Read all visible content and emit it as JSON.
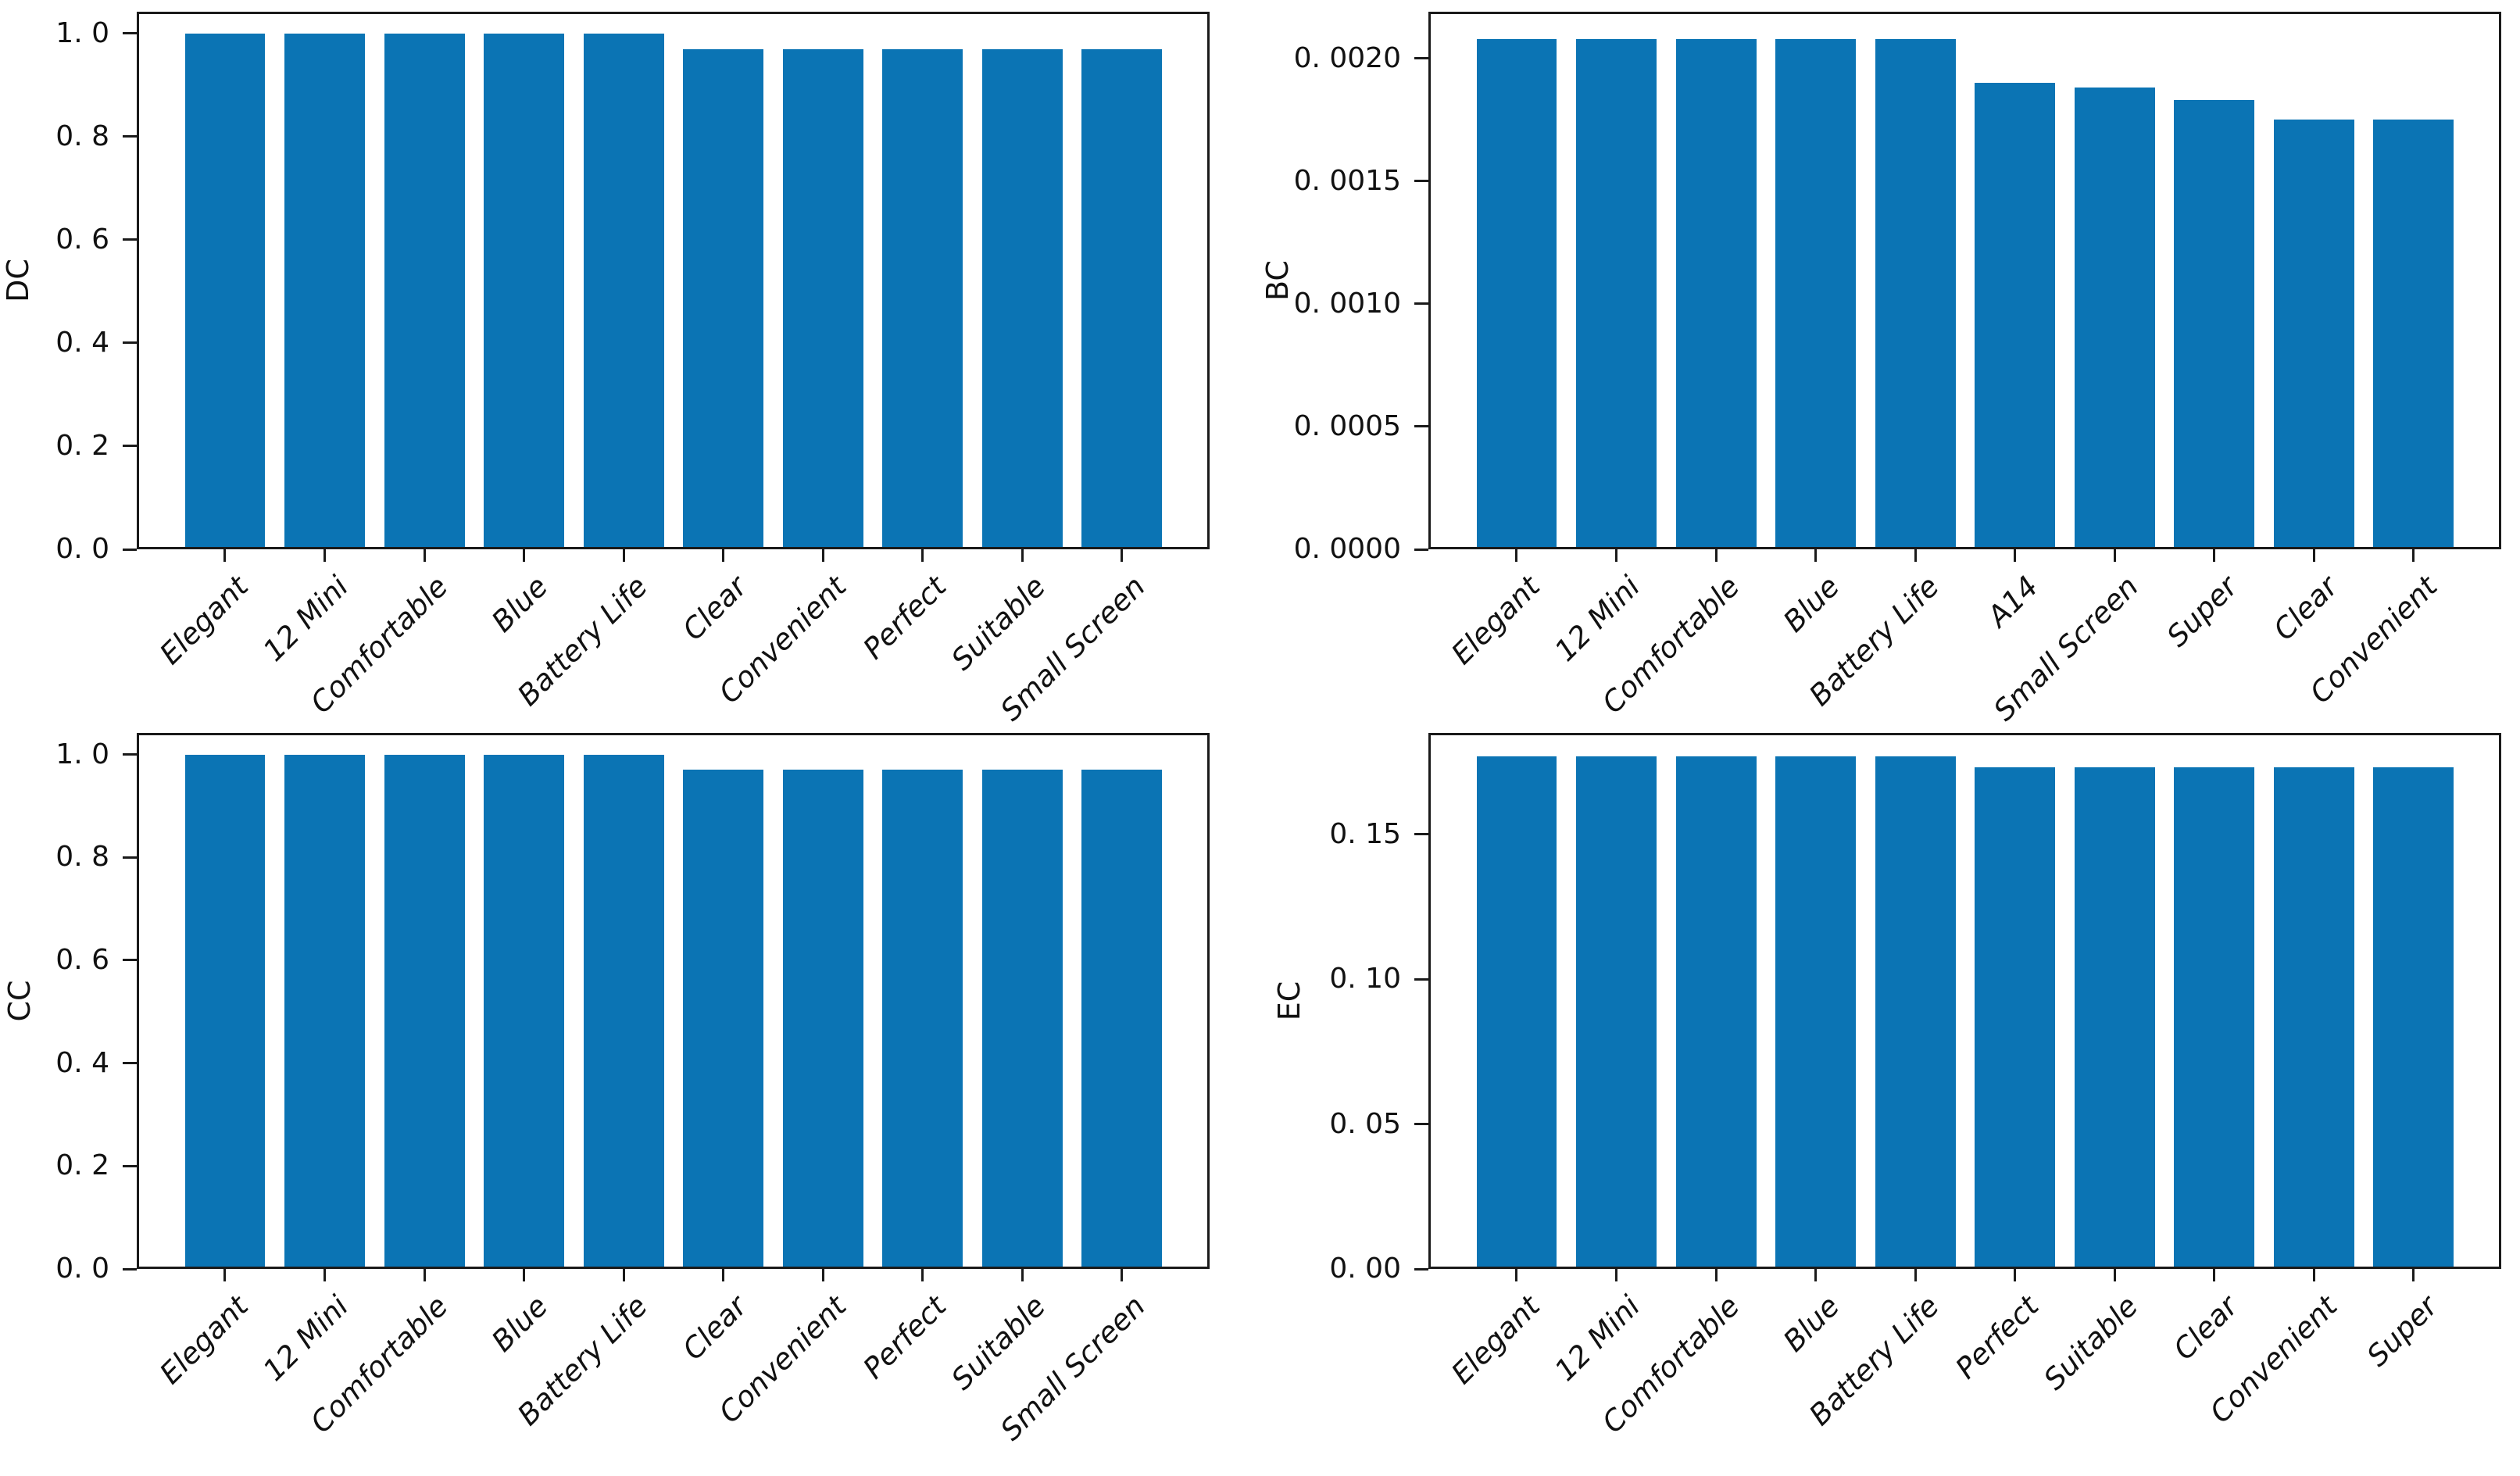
{
  "figure": {
    "background": "#ffffff",
    "bar_color": "#0b74b4",
    "axis_color": "#1a1a1a",
    "text_color": "#111111"
  },
  "chart_data": [
    {
      "type": "bar",
      "panel": "top-left",
      "title": "",
      "xlabel": "",
      "ylabel": "DC",
      "categories": [
        "Elegant",
        "12 Mini",
        "Comfortable",
        "Blue",
        "Battery Life",
        "Clear",
        "Convenient",
        "Perfect",
        "Suitable",
        "Small Screen"
      ],
      "values": [
        1.0,
        1.0,
        1.0,
        1.0,
        1.0,
        0.97,
        0.97,
        0.97,
        0.97,
        0.97
      ],
      "ylim": [
        0,
        1.042
      ],
      "grid": false,
      "legend": null,
      "yticks": [
        {
          "v": 1.0,
          "label": "1. 0"
        },
        {
          "v": 0.8,
          "label": "0. 8"
        },
        {
          "v": 0.6,
          "label": "0. 6"
        },
        {
          "v": 0.4,
          "label": "0. 4"
        },
        {
          "v": 0.2,
          "label": "0. 2"
        },
        {
          "v": 0.0,
          "label": "0. 0"
        }
      ]
    },
    {
      "type": "bar",
      "panel": "top-right",
      "title": "",
      "xlabel": "",
      "ylabel": "BC",
      "categories": [
        "Elegant",
        "12 Mini",
        "Comfortable",
        "Blue",
        "Battery Life",
        "A14",
        "Small Screen",
        "Super",
        "Clear",
        "Convenient"
      ],
      "values": [
        0.00208,
        0.00208,
        0.00208,
        0.00208,
        0.00208,
        0.0019,
        0.00188,
        0.00183,
        0.00175,
        0.00175
      ],
      "ylim": [
        0,
        0.00219
      ],
      "grid": false,
      "legend": null,
      "yticks": [
        {
          "v": 0.002,
          "label": "0. 0020"
        },
        {
          "v": 0.0015,
          "label": "0. 0015"
        },
        {
          "v": 0.001,
          "label": "0. 0010"
        },
        {
          "v": 0.0005,
          "label": "0. 0005"
        },
        {
          "v": 0.0,
          "label": "0. 0000"
        }
      ]
    },
    {
      "type": "bar",
      "panel": "bottom-left",
      "title": "",
      "xlabel": "",
      "ylabel": "CC",
      "categories": [
        "Elegant",
        "12 Mini",
        "Comfortable",
        "Blue",
        "Battery Life",
        "Clear",
        "Convenient",
        "Perfect",
        "Suitable",
        "Small Screen"
      ],
      "values": [
        1.0,
        1.0,
        1.0,
        1.0,
        1.0,
        0.97,
        0.97,
        0.97,
        0.97,
        0.97
      ],
      "ylim": [
        0,
        1.042
      ],
      "grid": false,
      "legend": null,
      "yticks": [
        {
          "v": 1.0,
          "label": "1. 0"
        },
        {
          "v": 0.8,
          "label": "0. 8"
        },
        {
          "v": 0.6,
          "label": "0. 6"
        },
        {
          "v": 0.4,
          "label": "0. 4"
        },
        {
          "v": 0.2,
          "label": "0. 2"
        },
        {
          "v": 0.0,
          "label": "0. 0"
        }
      ]
    },
    {
      "type": "bar",
      "panel": "bottom-right",
      "title": "",
      "xlabel": "",
      "ylabel": "EC",
      "categories": [
        "Elegant",
        "12 Mini",
        "Comfortable",
        "Blue",
        "Battery Life",
        "Perfect",
        "Suitable",
        "Clear",
        "Convenient",
        "Super"
      ],
      "values": [
        0.177,
        0.177,
        0.177,
        0.177,
        0.177,
        0.173,
        0.173,
        0.173,
        0.173,
        0.173
      ],
      "ylim": [
        0,
        0.185
      ],
      "grid": false,
      "legend": null,
      "yticks": [
        {
          "v": 0.15,
          "label": "0. 15"
        },
        {
          "v": 0.1,
          "label": "0. 10"
        },
        {
          "v": 0.05,
          "label": "0. 05"
        },
        {
          "v": 0.0,
          "label": "0. 00"
        }
      ]
    }
  ]
}
